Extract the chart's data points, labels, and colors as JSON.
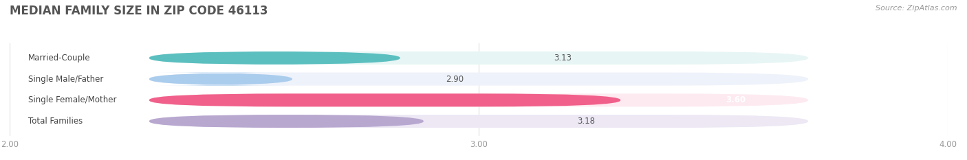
{
  "title": "MEDIAN FAMILY SIZE IN ZIP CODE 46113",
  "source": "Source: ZipAtlas.com",
  "categories": [
    "Married-Couple",
    "Single Male/Father",
    "Single Female/Mother",
    "Total Families"
  ],
  "values": [
    3.13,
    2.9,
    3.6,
    3.18
  ],
  "bar_colors": [
    "#5BBFBF",
    "#AACCED",
    "#F0608A",
    "#B8A8D0"
  ],
  "bar_bg_colors": [
    "#E8F5F5",
    "#EEF2FA",
    "#FDEAF0",
    "#EDE8F4"
  ],
  "xlim": [
    2.0,
    4.0
  ],
  "xticks": [
    2.0,
    3.0,
    4.0
  ],
  "xtick_labels": [
    "2.00",
    "3.00",
    "4.00"
  ],
  "bar_height": 0.62,
  "label_fontsize": 8.5,
  "value_fontsize": 8.5,
  "title_fontsize": 12,
  "source_fontsize": 8,
  "title_color": "#555555",
  "label_color": "#444444",
  "value_color": "#555555",
  "tick_color": "#999999",
  "source_color": "#999999",
  "bg_color": "#FFFFFF",
  "grid_color": "#DDDDDD"
}
